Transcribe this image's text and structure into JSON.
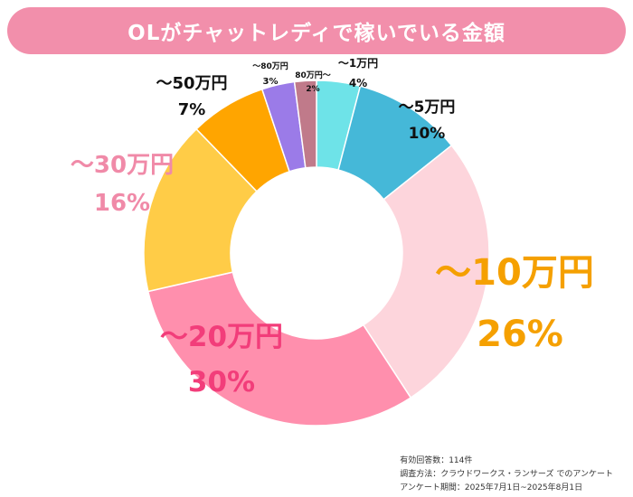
{
  "title": "OLがチャットレディで稼いでいる金額",
  "chart_data": {
    "type": "pie",
    "subtype": "donut",
    "slices": [
      {
        "label": "～1万円",
        "value": 4,
        "pct_label": "4%",
        "color": "#6ee3e8",
        "label_color": "#111111"
      },
      {
        "label": "～5万円",
        "value": 10,
        "pct_label": "10%",
        "color": "#45b8d8",
        "label_color": "#111111"
      },
      {
        "label": "～10万円",
        "value": 26,
        "pct_label": "26%",
        "color": "#fdd5dc",
        "label_color": "#f5a000"
      },
      {
        "label": "～20万円",
        "value": 30,
        "pct_label": "30%",
        "color": "#ff8fad",
        "label_color": "#f23d7a"
      },
      {
        "label": "～30万円",
        "value": 16,
        "pct_label": "16%",
        "color": "#ffcc47",
        "label_color": "#f08aa8"
      },
      {
        "label": "～50万円",
        "value": 7,
        "pct_label": "7%",
        "color": "#ffa500",
        "label_color": "#111111"
      },
      {
        "label": "～80万円",
        "value": 3,
        "pct_label": "3%",
        "color": "#9b7be8",
        "label_color": "#111111"
      },
      {
        "label": "80万円～",
        "value": 2,
        "pct_label": "2%",
        "color": "#c07a8a",
        "label_color": "#111111"
      }
    ]
  },
  "footer": {
    "line1": "有効回答数：114件",
    "line2": "調査方法：クラウドワークス・ランサーズ でのアンケート",
    "line3": "アンケート期間：2025年7月1日~2025年8月1日"
  }
}
